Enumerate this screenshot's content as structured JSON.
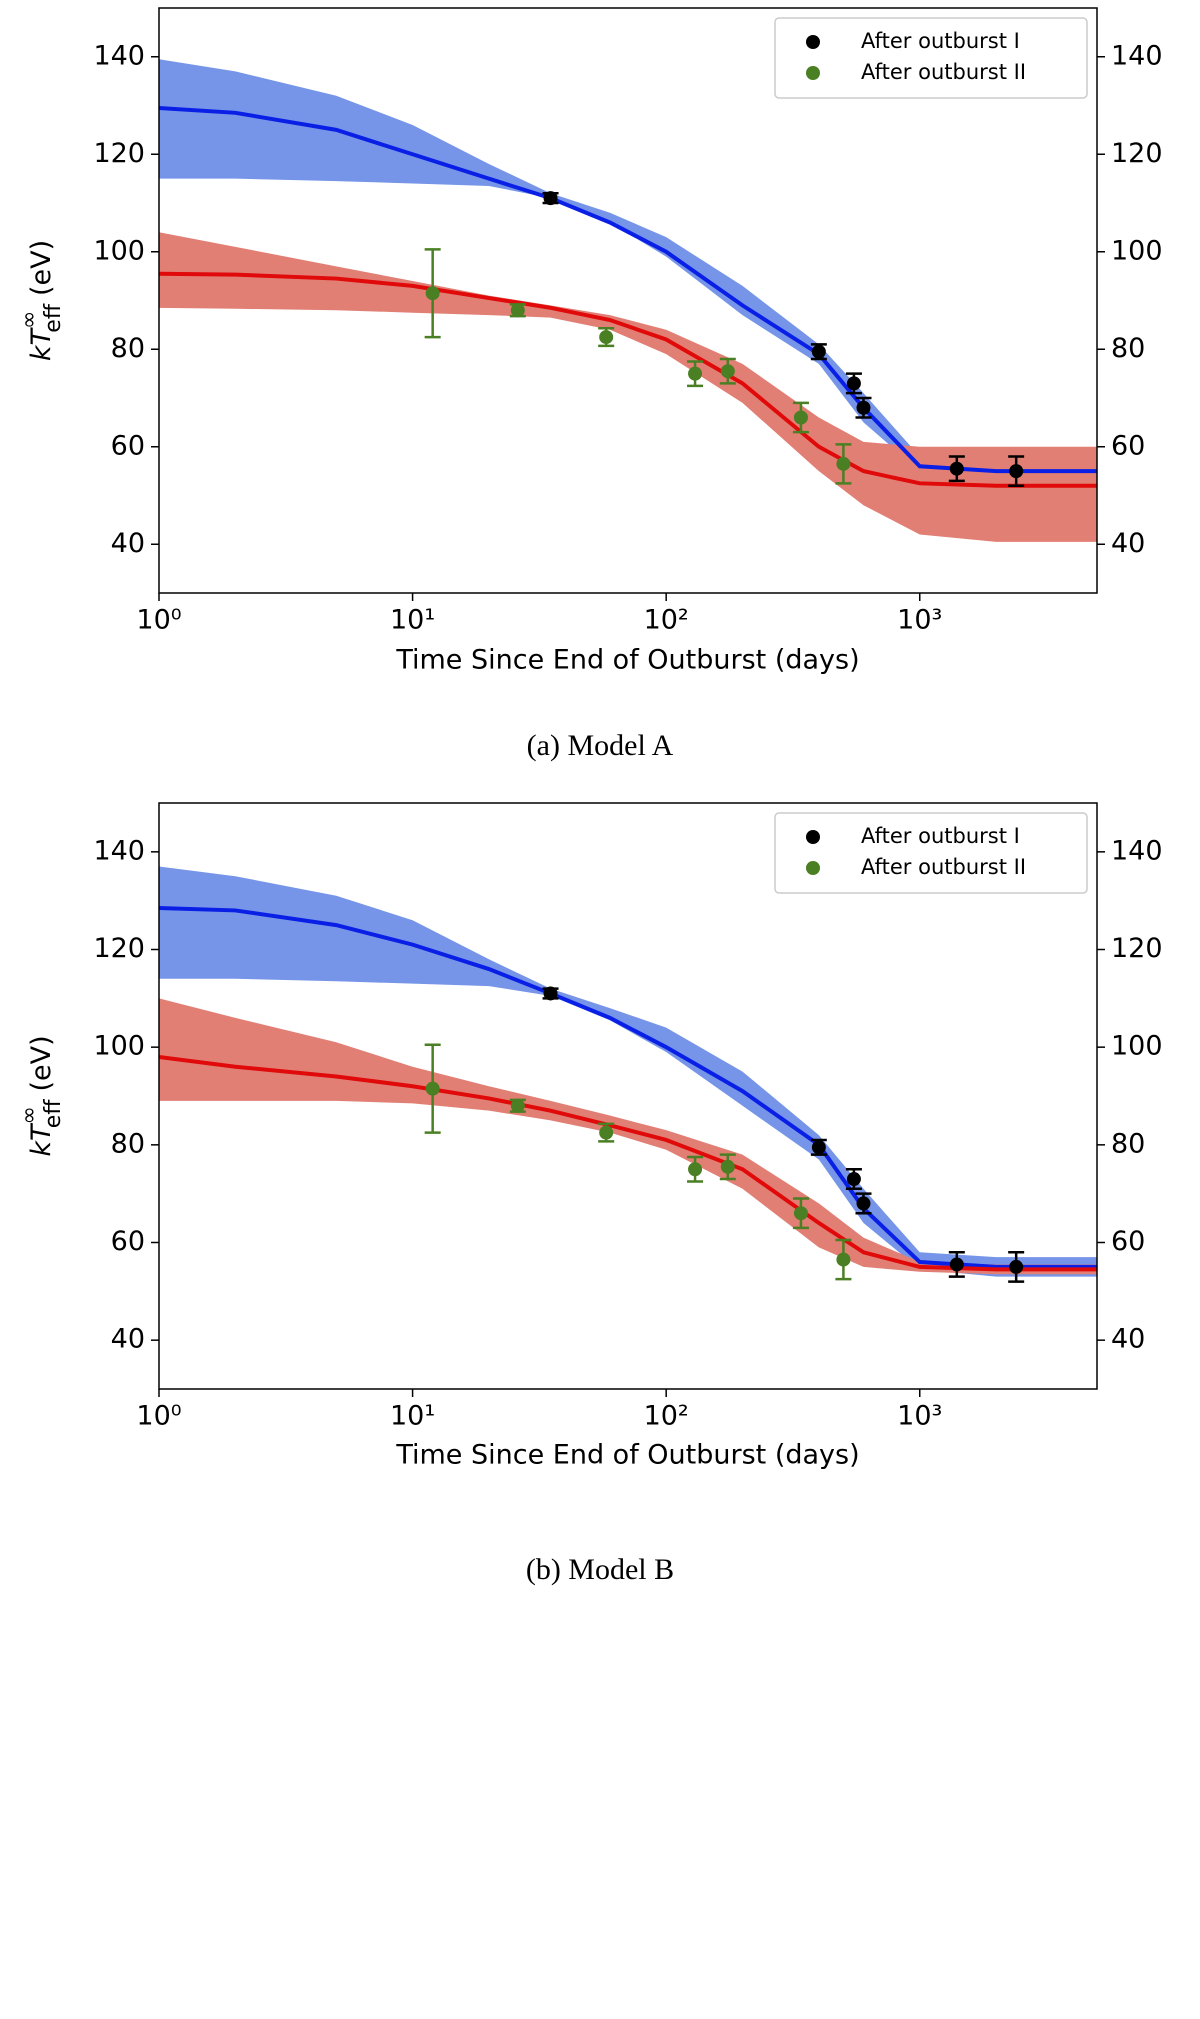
{
  "chart_data": [
    {
      "type": "line",
      "caption": "(a) Model A",
      "xlabel": "Time Since End of Outburst (days)",
      "ylabel": {
        "main": "kT",
        "sup": "∞",
        "sub": "eff",
        "unit": "(eV)"
      },
      "xlog": true,
      "xlim": [
        1,
        5000
      ],
      "ylim": [
        30,
        150
      ],
      "xticks": [
        {
          "value": 1,
          "label": "10⁰"
        },
        {
          "value": 10,
          "label": "10¹"
        },
        {
          "value": 100,
          "label": "10²"
        },
        {
          "value": 1000,
          "label": "10³"
        }
      ],
      "yticks": [
        40,
        60,
        80,
        100,
        120,
        140
      ],
      "legend": "upper right",
      "bands": [
        {
          "color": "#7695e8",
          "x": [
            1,
            2,
            5,
            10,
            20,
            35,
            60,
            100,
            200,
            400,
            600,
            1000,
            2000,
            5000
          ],
          "lower": [
            115,
            115,
            114.5,
            114,
            113.5,
            111,
            106,
            99,
            87,
            77,
            65,
            55,
            54,
            54
          ],
          "upper": [
            139.5,
            137,
            132,
            126,
            118,
            112,
            108,
            103,
            93,
            81,
            71,
            58,
            57.5,
            57.5
          ]
        },
        {
          "color": "#e27f75",
          "x": [
            1,
            2,
            5,
            10,
            20,
            35,
            60,
            100,
            200,
            400,
            600,
            1000,
            2000,
            5000
          ],
          "lower": [
            88.5,
            88.3,
            88,
            87.5,
            87,
            86.5,
            84,
            79,
            69,
            55,
            48,
            42,
            40.5,
            40.5
          ],
          "upper": [
            104,
            101,
            97,
            94,
            91,
            89,
            87,
            84,
            77,
            66,
            61,
            60,
            60,
            60
          ]
        }
      ],
      "curves": [
        {
          "color": "#0a1fe6",
          "x": [
            1,
            2,
            5,
            10,
            20,
            35,
            60,
            100,
            200,
            400,
            600,
            1000,
            2000,
            5000
          ],
          "values": [
            129.5,
            128.5,
            125,
            120,
            115,
            111,
            106,
            100,
            89,
            79,
            68,
            56,
            55,
            55
          ]
        },
        {
          "color": "#e00a0a",
          "x": [
            1,
            2,
            5,
            10,
            20,
            35,
            60,
            100,
            200,
            400,
            600,
            1000,
            2000,
            5000
          ],
          "values": [
            95.5,
            95.3,
            94.5,
            93,
            90.5,
            88.5,
            86,
            82,
            73,
            60,
            55,
            52.5,
            52,
            52
          ]
        }
      ],
      "series": [
        {
          "name": "After outburst  I",
          "color": "#000000",
          "x": [
            35,
            400,
            550,
            600,
            1400,
            2400
          ],
          "values": [
            111,
            79.5,
            73,
            68,
            55.5,
            55
          ],
          "errors": [
            1,
            1.5,
            2,
            2,
            2.5,
            3
          ]
        },
        {
          "name": "After outburst  II",
          "color": "#4a7f23",
          "x": [
            12,
            26,
            58,
            130,
            175,
            340,
            500
          ],
          "values": [
            91.5,
            88,
            82.5,
            75,
            75.5,
            66,
            56.5
          ],
          "errors": [
            9,
            1.2,
            1.8,
            2.5,
            2.5,
            3,
            4
          ]
        }
      ]
    },
    {
      "type": "line",
      "caption": "(b) Model B",
      "xlabel": "Time Since End of Outburst (days)",
      "ylabel": {
        "main": "kT",
        "sup": "∞",
        "sub": "eff",
        "unit": "(eV)"
      },
      "xlog": true,
      "xlim": [
        1,
        5000
      ],
      "ylim": [
        30,
        150
      ],
      "xticks": [
        {
          "value": 1,
          "label": "10⁰"
        },
        {
          "value": 10,
          "label": "10¹"
        },
        {
          "value": 100,
          "label": "10²"
        },
        {
          "value": 1000,
          "label": "10³"
        }
      ],
      "yticks": [
        40,
        60,
        80,
        100,
        120,
        140
      ],
      "legend": "upper right",
      "bands": [
        {
          "color": "#7695e8",
          "x": [
            1,
            2,
            5,
            10,
            20,
            35,
            60,
            100,
            200,
            400,
            600,
            1000,
            2000,
            5000
          ],
          "lower": [
            114,
            114,
            113.5,
            113,
            112.5,
            110.5,
            105.5,
            99,
            88,
            77,
            64,
            54.5,
            53,
            53
          ],
          "upper": [
            137,
            135,
            131,
            126,
            118,
            112,
            108,
            104,
            95,
            82,
            71,
            58,
            57,
            57
          ]
        },
        {
          "color": "#e27f75",
          "x": [
            1,
            2,
            5,
            10,
            20,
            35,
            60,
            100,
            200,
            400,
            600,
            1000,
            2000,
            5000
          ],
          "lower": [
            89,
            89,
            89,
            88.5,
            87,
            85,
            82.5,
            79,
            71,
            59,
            55,
            54,
            53.5,
            53.5
          ],
          "upper": [
            110,
            106,
            101,
            96,
            92,
            89,
            86,
            83,
            78,
            68,
            61,
            56,
            55.5,
            55.5
          ]
        }
      ],
      "curves": [
        {
          "color": "#0a1fe6",
          "x": [
            1,
            2,
            5,
            10,
            20,
            35,
            60,
            100,
            200,
            400,
            600,
            1000,
            2000,
            5000
          ],
          "values": [
            128.5,
            128,
            125,
            121,
            116,
            111,
            106,
            100,
            91,
            80,
            67,
            56,
            55,
            55
          ]
        },
        {
          "color": "#e00a0a",
          "x": [
            1,
            2,
            5,
            10,
            20,
            35,
            60,
            100,
            200,
            400,
            600,
            1000,
            2000,
            5000
          ],
          "values": [
            98,
            96,
            94,
            92,
            89.5,
            87,
            84,
            81,
            75,
            64,
            58,
            55,
            54.5,
            54.5
          ]
        }
      ],
      "series": [
        {
          "name": "After outburst  I",
          "color": "#000000",
          "x": [
            35,
            400,
            550,
            600,
            1400,
            2400
          ],
          "values": [
            111,
            79.5,
            73,
            68,
            55.5,
            55
          ],
          "errors": [
            1,
            1.5,
            2,
            2,
            2.5,
            3
          ]
        },
        {
          "name": "After outburst  II",
          "color": "#4a7f23",
          "x": [
            12,
            26,
            58,
            130,
            175,
            340,
            500
          ],
          "values": [
            91.5,
            88,
            82.5,
            75,
            75.5,
            66,
            56.5
          ],
          "errors": [
            9,
            1.2,
            1.8,
            2.5,
            2.5,
            3,
            4
          ]
        }
      ]
    }
  ]
}
